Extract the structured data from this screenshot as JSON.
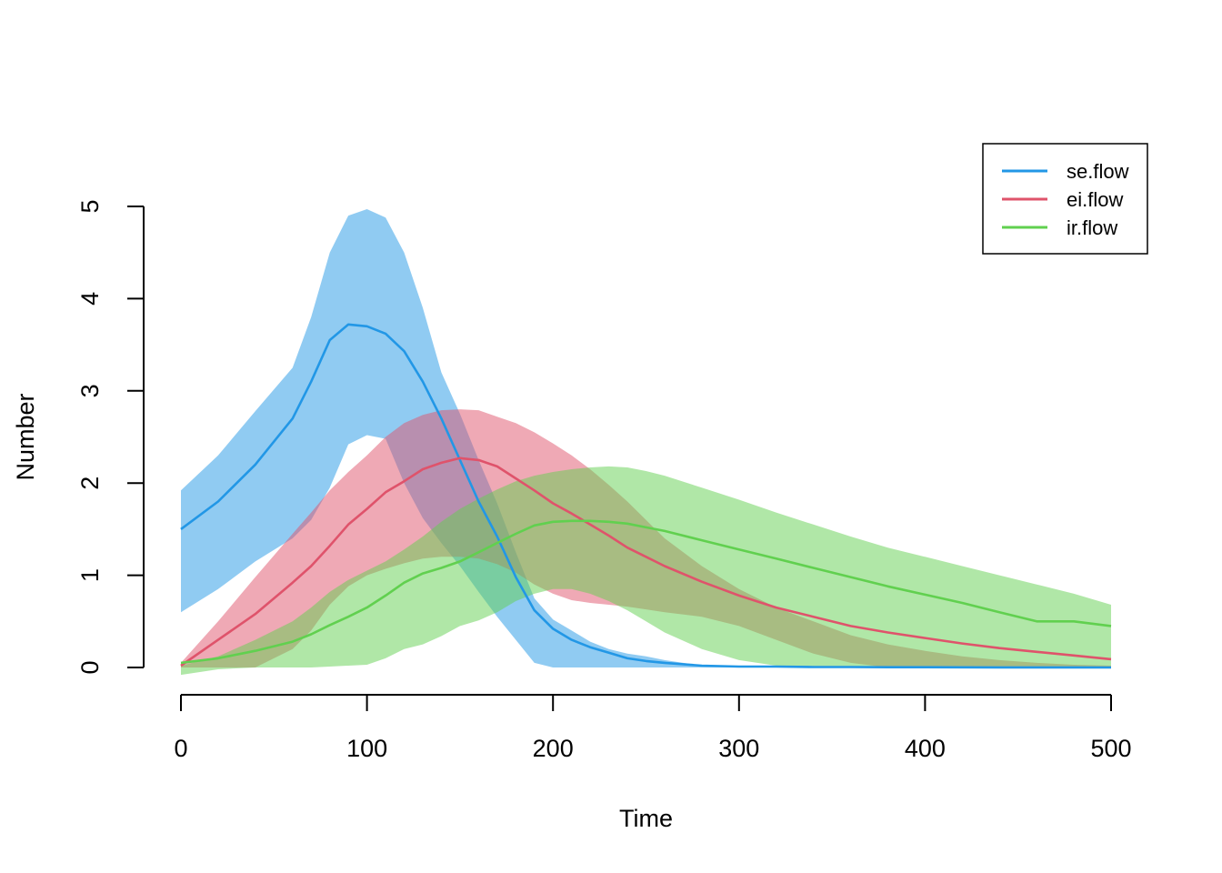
{
  "chart_data": {
    "type": "area",
    "title": "",
    "xlabel": "Time",
    "ylabel": "Number",
    "xlim": [
      0,
      500
    ],
    "ylim": [
      0,
      5
    ],
    "x_ticks": [
      0,
      100,
      200,
      300,
      400,
      500
    ],
    "y_ticks": [
      0,
      1,
      2,
      3,
      4,
      5
    ],
    "x_tick_labels": [
      "0",
      "100",
      "200",
      "300",
      "400",
      "500"
    ],
    "y_tick_labels": [
      "0",
      "1",
      "2",
      "3",
      "4",
      "5"
    ],
    "grid": false,
    "legend_position": "top-right",
    "x": [
      0,
      20,
      40,
      60,
      70,
      80,
      90,
      100,
      110,
      120,
      130,
      140,
      150,
      160,
      170,
      180,
      190,
      200,
      210,
      220,
      230,
      240,
      250,
      260,
      280,
      300,
      320,
      340,
      360,
      380,
      400,
      420,
      440,
      460,
      480,
      500
    ],
    "series": [
      {
        "name": "se.flow",
        "color": "#2297E6",
        "band_color": "rgba(34,151,230,0.5)",
        "mean": [
          1.5,
          1.8,
          2.2,
          2.7,
          3.1,
          3.55,
          3.72,
          3.7,
          3.62,
          3.43,
          3.1,
          2.7,
          2.25,
          1.8,
          1.42,
          0.98,
          0.62,
          0.42,
          0.3,
          0.22,
          0.16,
          0.1,
          0.07,
          0.05,
          0.02,
          0.01,
          0.01,
          0.005,
          0.005,
          0.003,
          0.003,
          0.002,
          0.001,
          0.001,
          0.001,
          0
        ],
        "upper": [
          1.92,
          2.3,
          2.78,
          3.25,
          3.8,
          4.5,
          4.9,
          4.97,
          4.88,
          4.5,
          3.9,
          3.2,
          2.75,
          2.25,
          1.78,
          1.25,
          0.75,
          0.52,
          0.4,
          0.28,
          0.2,
          0.15,
          0.12,
          0.08,
          0.02,
          0.01,
          0.01,
          0.005,
          0.005,
          0.003,
          0.003,
          0.002,
          0.001,
          0.001,
          0.001,
          0
        ],
        "lower": [
          0.6,
          0.85,
          1.15,
          1.4,
          1.6,
          1.95,
          2.42,
          2.52,
          2.48,
          2.0,
          1.62,
          1.35,
          1.1,
          0.82,
          0.55,
          0.3,
          0.05,
          0,
          0,
          0,
          0,
          0,
          0,
          0,
          0,
          0,
          0,
          0,
          0,
          0,
          0,
          0,
          0,
          0,
          0,
          0
        ]
      },
      {
        "name": "ei.flow",
        "color": "#DF536B",
        "band_color": "rgba(223,83,107,0.5)",
        "mean": [
          0.02,
          0.3,
          0.58,
          0.92,
          1.1,
          1.32,
          1.55,
          1.72,
          1.9,
          2.02,
          2.15,
          2.22,
          2.27,
          2.25,
          2.18,
          2.05,
          1.92,
          1.78,
          1.67,
          1.55,
          1.43,
          1.3,
          1.2,
          1.1,
          0.93,
          0.78,
          0.65,
          0.55,
          0.45,
          0.38,
          0.32,
          0.26,
          0.21,
          0.17,
          0.13,
          0.09
        ],
        "upper": [
          0.05,
          0.5,
          0.98,
          1.45,
          1.68,
          1.92,
          2.12,
          2.3,
          2.5,
          2.65,
          2.74,
          2.79,
          2.8,
          2.79,
          2.72,
          2.65,
          2.55,
          2.43,
          2.3,
          2.15,
          1.98,
          1.8,
          1.6,
          1.4,
          1.1,
          0.85,
          0.65,
          0.5,
          0.35,
          0.25,
          0.18,
          0.12,
          0.08,
          0.05,
          0.03,
          0.02
        ],
        "lower": [
          0,
          0,
          0,
          0.2,
          0.4,
          0.68,
          0.88,
          1.0,
          1.07,
          1.13,
          1.18,
          1.2,
          1.2,
          1.18,
          1.12,
          1.03,
          0.9,
          0.8,
          0.73,
          0.7,
          0.68,
          0.66,
          0.63,
          0.6,
          0.55,
          0.45,
          0.3,
          0.15,
          0.05,
          0,
          0,
          0,
          0,
          0,
          0,
          0
        ]
      },
      {
        "name": "ir.flow",
        "color": "#61D04F",
        "band_color": "rgba(97,208,79,0.5)",
        "mean": [
          0.05,
          0.1,
          0.18,
          0.28,
          0.36,
          0.46,
          0.55,
          0.65,
          0.78,
          0.92,
          1.02,
          1.08,
          1.15,
          1.25,
          1.35,
          1.45,
          1.54,
          1.58,
          1.59,
          1.59,
          1.58,
          1.56,
          1.52,
          1.48,
          1.38,
          1.28,
          1.18,
          1.08,
          0.98,
          0.88,
          0.79,
          0.7,
          0.6,
          0.5,
          0.5,
          0.45
        ],
        "upper": [
          0.02,
          0.12,
          0.3,
          0.5,
          0.65,
          0.82,
          0.95,
          1.05,
          1.15,
          1.28,
          1.42,
          1.58,
          1.72,
          1.83,
          1.93,
          2.02,
          2.08,
          2.12,
          2.15,
          2.17,
          2.18,
          2.17,
          2.13,
          2.08,
          1.95,
          1.82,
          1.68,
          1.55,
          1.42,
          1.3,
          1.2,
          1.1,
          1.0,
          0.9,
          0.8,
          0.68
        ],
        "lower": [
          -0.08,
          -0.02,
          0,
          0,
          0,
          0.01,
          0.02,
          0.03,
          0.1,
          0.2,
          0.25,
          0.34,
          0.45,
          0.51,
          0.6,
          0.72,
          0.8,
          0.85,
          0.85,
          0.8,
          0.72,
          0.62,
          0.5,
          0.38,
          0.2,
          0.08,
          0.02,
          0,
          0,
          0,
          0,
          0,
          0,
          0,
          0,
          0
        ]
      }
    ]
  },
  "legend": {
    "items": [
      {
        "label": "se.flow",
        "color": "#2297E6"
      },
      {
        "label": "ei.flow",
        "color": "#DF536B"
      },
      {
        "label": "ir.flow",
        "color": "#61D04F"
      }
    ]
  }
}
